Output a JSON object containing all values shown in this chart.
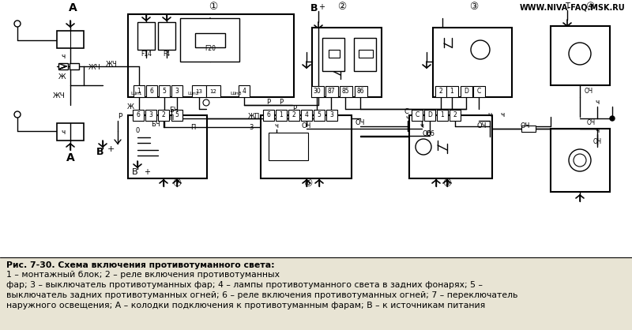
{
  "bg_color": "#e8e4d4",
  "watermark": "WWW.NIVA-FAQ.MSK.RU",
  "caption_bold": "Рис. 7-30. Схема включения противотуманного света:",
  "caption_rest": " 1 – монтажный блок; 2 – реле включения противотуманных фар; 3 – выключатель противотуманных фар; 4 – лампы противотуманного света в задних фонарях; 5 –\nвыключатель задних противотуманных огней; 6 – реле включения противотуманных огней; 7 – переключатель\nнаружного освещения; А – колодки подключения к противотуманным фарам; В – к источникам питания",
  "fig_width": 8.0,
  "fig_height": 4.18,
  "dpi": 100
}
